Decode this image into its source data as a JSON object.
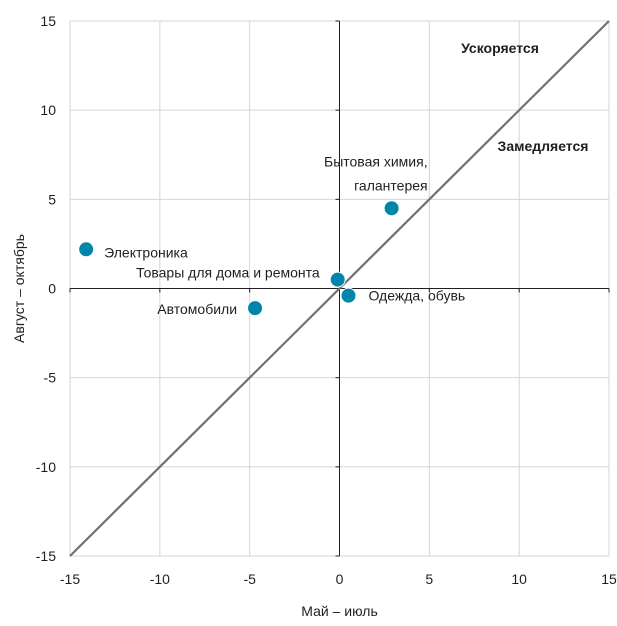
{
  "chart_data": {
    "type": "scatter",
    "xlabel": "Май – июль",
    "ylabel": "Август – октябрь",
    "xlim": [
      -15,
      15
    ],
    "ylim": [
      -15,
      15
    ],
    "x_ticks": [
      -15,
      -10,
      -5,
      0,
      5,
      10,
      15
    ],
    "y_ticks": [
      -15,
      -10,
      -5,
      0,
      5,
      10,
      15
    ],
    "tick_labels_x": [
      "-15",
      "-10",
      "-5",
      "0",
      "5",
      "10",
      "15"
    ],
    "tick_labels_y": [
      "-15",
      "-10",
      "-5",
      "0",
      "5",
      "10",
      "15"
    ],
    "grid": true,
    "reference_line": {
      "type": "diagonal",
      "x": [
        -15,
        15
      ],
      "y": [
        -15,
        15
      ],
      "color": "#707070"
    },
    "point_color": "#0086a8",
    "points": [
      {
        "label_lines": [
          "Электроника"
        ],
        "x": -14.1,
        "y": 2.2
      },
      {
        "label_lines": [
          "Товары для дома и ремонта"
        ],
        "x": -0.1,
        "y": 0.5
      },
      {
        "label_lines": [
          "Автомобили"
        ],
        "x": -4.7,
        "y": -1.1
      },
      {
        "label_lines": [
          "Одежда, обувь"
        ],
        "x": 0.5,
        "y": -0.4
      },
      {
        "label_lines": [
          "Бытовая химия,",
          "галантерея"
        ],
        "x": 2.9,
        "y": 4.5
      }
    ],
    "region_labels": [
      "Ускоряется",
      "Замедляется"
    ]
  }
}
